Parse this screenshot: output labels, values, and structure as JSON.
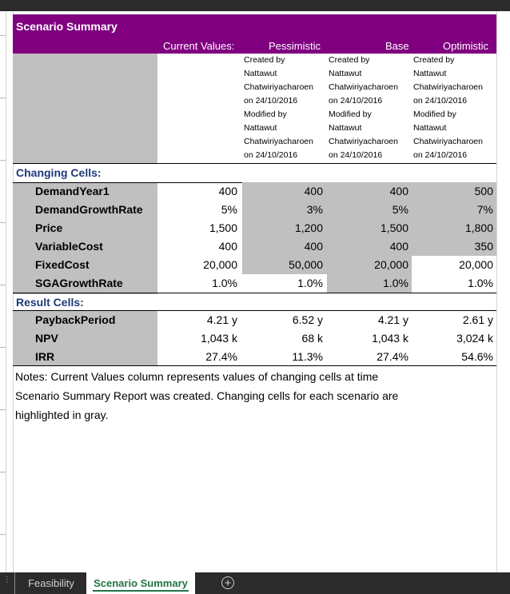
{
  "title": "Scenario Summary",
  "columns": {
    "current": "Current Values:",
    "pessimistic": "Pessimistic",
    "base": "Base",
    "optimistic": "Optimistic"
  },
  "meta": {
    "pessimistic": "Created by\nNattawut\nChatwiriyacharoen\non 24/10/2016\nModified by\nNattawut\nChatwiriyacharoen\non 24/10/2016",
    "base": "Created by\nNattawut\nChatwiriyacharoen\non 24/10/2016\nModified by\nNattawut\nChatwiriyacharoen\non 24/10/2016",
    "optimistic": "Created by\nNattawut\nChatwiriyacharoen\non 24/10/2016\nModified by\nNattawut\nChatwiriyacharoen\non 24/10/2016"
  },
  "changing_label": "Changing Cells:",
  "changing": [
    {
      "label": "DemandYear1",
      "current": "400",
      "pessimistic": "400",
      "base": "400",
      "optimistic": "500"
    },
    {
      "label": "DemandGrowthRate",
      "current": "5%",
      "pessimistic": "3%",
      "base": "5%",
      "optimistic": "7%"
    },
    {
      "label": "Price",
      "current": "1,500",
      "pessimistic": "1,200",
      "base": "1,500",
      "optimistic": "1,800"
    },
    {
      "label": "VariableCost",
      "current": "400",
      "pessimistic": "400",
      "base": "400",
      "optimistic": "350"
    },
    {
      "label": "FixedCost",
      "current": "20,000",
      "pessimistic": "50,000",
      "base": "20,000",
      "optimistic": "20,000"
    },
    {
      "label": "SGAGrowthRate",
      "current": "1.0%",
      "pessimistic": "1.0%",
      "base": "1.0%",
      "optimistic": "1.0%"
    }
  ],
  "result_label": "Result Cells:",
  "results": [
    {
      "label": "PaybackPeriod",
      "current": "4.21 y",
      "pessimistic": "6.52 y",
      "base": "4.21 y",
      "optimistic": "2.61 y"
    },
    {
      "label": "NPV",
      "current": "1,043 k",
      "pessimistic": "68 k",
      "base": "1,043 k",
      "optimistic": "3,024 k"
    },
    {
      "label": "IRR",
      "current": "27.4%",
      "pessimistic": "11.3%",
      "base": "27.4%",
      "optimistic": "54.6%"
    }
  ],
  "notes": "Notes:  Current Values column represents values of changing cells at time Scenario Summary Report was created.  Changing cells for each scenario are highlighted in gray.",
  "tabs": {
    "feasibility": "Feasibility",
    "scenario_summary": "Scenario Summary",
    "add_icon": "plus-circle-icon"
  },
  "colors": {
    "header": "#800080",
    "highlight": "#c0c0c0",
    "section_text": "#1f3a7a",
    "active_tab": "#217346"
  }
}
